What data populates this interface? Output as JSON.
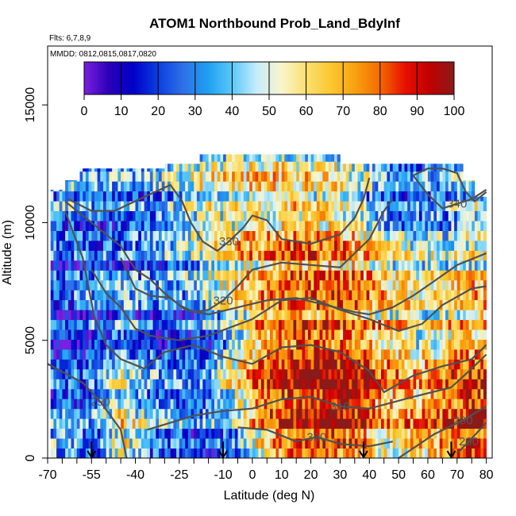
{
  "chart_data": {
    "type": "heatmap",
    "title": "ATOM1 Northbound Prob_Land_BdyInf",
    "flights_note": "Flts: 6,7,8,9",
    "dates_note": "MMDD: 0812,0815,0817,0820",
    "xlabel": "Latitude (deg N)",
    "ylabel": "Altitude (m)",
    "xlim": [
      -70,
      82
    ],
    "ylim": [
      0,
      17500
    ],
    "x_ticks": [
      -70,
      -55,
      -40,
      -25,
      -10,
      0,
      10,
      20,
      30,
      40,
      50,
      60,
      70,
      80
    ],
    "x_minor_ticks": [
      -65,
      -60,
      -50,
      -45,
      -35,
      -30,
      -20,
      -15,
      -5,
      5,
      15,
      25,
      35,
      45,
      55,
      65,
      75
    ],
    "y_ticks": [
      0,
      5000,
      10000,
      15000
    ],
    "colorbar": {
      "min": 0,
      "max": 100,
      "ticks": [
        0,
        10,
        20,
        30,
        40,
        50,
        60,
        70,
        80,
        90,
        100
      ],
      "colors": [
        "#7b1fe0",
        "#2b00b8",
        "#0000c8",
        "#0b3fe0",
        "#2f6fe8",
        "#1e9ff0",
        "#5ac8f8",
        "#c8ecfb",
        "#f7f5cc",
        "#fbe070",
        "#fbc830",
        "#f8a010",
        "#f56a00",
        "#e81000",
        "#c00000",
        "#8b1a1a"
      ]
    },
    "heatmap_summary": {
      "x_bin_edges": [
        -70,
        -60,
        -50,
        -40,
        -30,
        -20,
        -10,
        0,
        10,
        20,
        30,
        40,
        50,
        60,
        70,
        80
      ],
      "y_bin_edges": [
        0,
        2000,
        4000,
        6000,
        8000,
        10000,
        12000
      ],
      "values": [
        [
          45,
          30,
          60,
          35,
          30,
          25,
          40,
          70,
          85,
          90,
          85,
          60,
          70,
          75,
          90
        ],
        [
          20,
          20,
          45,
          30,
          25,
          30,
          55,
          80,
          90,
          95,
          90,
          70,
          65,
          70,
          85
        ],
        [
          15,
          20,
          30,
          25,
          20,
          25,
          50,
          75,
          85,
          85,
          75,
          65,
          55,
          60,
          70
        ],
        [
          15,
          25,
          30,
          25,
          25,
          35,
          55,
          65,
          70,
          70,
          70,
          60,
          50,
          55,
          60
        ],
        [
          25,
          20,
          25,
          30,
          40,
          55,
          65,
          70,
          75,
          75,
          70,
          55,
          45,
          45,
          50
        ],
        [
          35,
          30,
          30,
          30,
          40,
          50,
          55,
          55,
          55,
          55,
          45,
          30,
          25,
          30,
          45
        ]
      ],
      "data_top_m": 12800
    },
    "contours": [
      {
        "label": "290",
        "points": [
          [
            -70,
            4000
          ],
          [
            -58,
            3200
          ],
          [
            -52,
            2400
          ],
          [
            -45,
            1200
          ],
          [
            -43,
            0
          ]
        ]
      },
      {
        "label": "290",
        "points": [
          [
            50,
            0
          ],
          [
            62,
            1000
          ],
          [
            72,
            1600
          ],
          [
            80,
            2200
          ]
        ]
      },
      {
        "label": "290",
        "points": [
          [
            70,
            200
          ],
          [
            74,
            700
          ],
          [
            80,
            1500
          ]
        ]
      },
      {
        "label": "300",
        "points": [
          [
            -5,
            1300
          ],
          [
            5,
            1200
          ],
          [
            15,
            700
          ],
          [
            22,
            900
          ],
          [
            30,
            600
          ],
          [
            40,
            500
          ],
          [
            48,
            700
          ]
        ]
      },
      {
        "label": "310",
        "points": [
          [
            -36,
            1200
          ],
          [
            -20,
            1800
          ],
          [
            -10,
            2000
          ],
          [
            0,
            2100
          ],
          [
            10,
            2500
          ],
          [
            20,
            2600
          ],
          [
            30,
            2200
          ],
          [
            40,
            2100
          ],
          [
            55,
            2600
          ],
          [
            68,
            3000
          ],
          [
            75,
            3800
          ],
          [
            80,
            4400
          ]
        ]
      },
      {
        "label": "",
        "points": [
          [
            -64,
            10500
          ],
          [
            -58,
            8500
          ],
          [
            -54,
            6000
          ],
          [
            -50,
            4800
          ],
          [
            -45,
            4200
          ],
          [
            -37,
            3800
          ],
          [
            -30,
            4500
          ],
          [
            -20,
            4800
          ],
          [
            -10,
            4300
          ],
          [
            0,
            4000
          ],
          [
            10,
            4700
          ],
          [
            20,
            4800
          ],
          [
            30,
            4500
          ],
          [
            40,
            3700
          ],
          [
            45,
            2800
          ],
          [
            55,
            3500
          ],
          [
            65,
            3900
          ],
          [
            75,
            4200
          ],
          [
            80,
            4800
          ]
        ]
      },
      {
        "label": "",
        "points": [
          [
            -55,
            8000
          ],
          [
            -50,
            7000
          ],
          [
            -45,
            6400
          ],
          [
            -40,
            5500
          ],
          [
            -35,
            5200
          ],
          [
            -25,
            5000
          ],
          [
            -15,
            5200
          ],
          [
            0,
            5900
          ],
          [
            10,
            6700
          ],
          [
            20,
            6800
          ],
          [
            30,
            6300
          ],
          [
            40,
            5900
          ],
          [
            50,
            5400
          ],
          [
            58,
            5700
          ],
          [
            65,
            6500
          ],
          [
            75,
            7200
          ],
          [
            80,
            7300
          ]
        ]
      },
      {
        "label": "",
        "points": [
          [
            -45,
            8500
          ],
          [
            -40,
            7200
          ],
          [
            -35,
            6900
          ],
          [
            -28,
            6800
          ],
          [
            -23,
            6300
          ],
          [
            -15,
            6100
          ],
          [
            -5,
            6400
          ],
          [
            5,
            6700
          ],
          [
            15,
            6800
          ],
          [
            25,
            6500
          ],
          [
            35,
            6200
          ],
          [
            40,
            6100
          ],
          [
            48,
            6400
          ],
          [
            55,
            6900
          ],
          [
            62,
            7500
          ],
          [
            70,
            8200
          ],
          [
            80,
            8700
          ]
        ]
      },
      {
        "label": "320",
        "points": [
          [
            -64,
            10900
          ],
          [
            -57,
            10200
          ],
          [
            -50,
            9500
          ],
          [
            -45,
            9000
          ],
          [
            -40,
            8000
          ],
          [
            -35,
            7600
          ],
          [
            -30,
            7000
          ],
          [
            -25,
            6500
          ],
          [
            -20,
            6200
          ],
          [
            -15,
            6300
          ],
          [
            -10,
            6700
          ],
          [
            -5,
            7300
          ],
          [
            0,
            8000
          ],
          [
            10,
            8300
          ],
          [
            20,
            8200
          ],
          [
            30,
            8100
          ],
          [
            35,
            8700
          ],
          [
            40,
            9300
          ],
          [
            45,
            10500
          ],
          [
            48,
            11000
          ]
        ]
      },
      {
        "label": "330",
        "points": [
          [
            -63,
            11000
          ],
          [
            -55,
            10500
          ],
          [
            -47,
            10500
          ],
          [
            -42,
            10800
          ],
          [
            -35,
            11200
          ],
          [
            -28,
            11600
          ],
          [
            -24,
            10900
          ],
          [
            -21,
            10000
          ],
          [
            -17,
            9200
          ],
          [
            -12,
            8800
          ],
          [
            -8,
            9200
          ],
          [
            -3,
            9800
          ],
          [
            0,
            10300
          ],
          [
            5,
            10100
          ],
          [
            10,
            9300
          ],
          [
            20,
            9100
          ],
          [
            30,
            9500
          ],
          [
            35,
            10200
          ],
          [
            38,
            11000
          ],
          [
            40,
            11900
          ]
        ]
      },
      {
        "label": "340",
        "points": [
          [
            55,
            12000
          ],
          [
            60,
            11200
          ],
          [
            65,
            10600
          ],
          [
            70,
            10800
          ],
          [
            75,
            11000
          ],
          [
            80,
            11400
          ]
        ]
      },
      {
        "label": "",
        "points": [
          [
            55,
            12000
          ],
          [
            60,
            12300
          ],
          [
            65,
            12300
          ],
          [
            70,
            12100
          ],
          [
            73,
            11300
          ],
          [
            76,
            10900
          ],
          [
            80,
            11300
          ]
        ]
      }
    ],
    "markers_at_latitude": [
      -55,
      -10,
      38,
      68
    ],
    "grid": false
  }
}
